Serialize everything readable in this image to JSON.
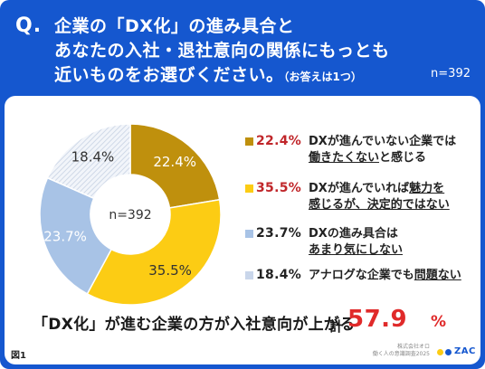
{
  "question": {
    "mark": "Q.",
    "line1": "企業の「DX化」の進み具合と",
    "line2": "あなたの入社・退社意向の関係にもっとも",
    "line3": "近いものをお選びください。",
    "note": "（お答えは1つ）",
    "n": "n=392"
  },
  "chart_data": {
    "type": "pie",
    "donut": true,
    "center_label": "n=392",
    "legend_position": "right",
    "slices": [
      {
        "label": "DXが進んでいない企業では働きたくないと感じる",
        "value": 22.4,
        "display": "22.4%",
        "color": "#bf900d"
      },
      {
        "label": "DXが進んでいれば魅力を感じるが、決定的ではない",
        "value": 35.5,
        "display": "35.5%",
        "color": "#fccc14"
      },
      {
        "label": "DXの進み具合はあまり気にしない",
        "value": 23.7,
        "display": "23.7%",
        "color": "#a8c3e6"
      },
      {
        "label": "アナログな企業でも問題ない",
        "value": 18.4,
        "display": "18.4%",
        "color": "#dde6f2",
        "hatched": true
      }
    ]
  },
  "legend": [
    {
      "pct": "22.4%",
      "pct_color": "#c0262a",
      "swatch": "#bf900d",
      "pre1": "DXが進んでいない企業では",
      "u1": "",
      "post1": "",
      "pre2": "",
      "u2": "働きたくない",
      "post2": "と感じる"
    },
    {
      "pct": "35.5%",
      "pct_color": "#c0262a",
      "swatch": "#fccc14",
      "pre1": "DXが進んでいれば",
      "u1": "魅力を",
      "post1": "",
      "pre2": "",
      "u2": "感じるが、決定的ではない",
      "post2": ""
    },
    {
      "pct": "23.7%",
      "pct_color": "#222222",
      "swatch": "#a8c3e6",
      "pre1": "DXの進み具合は",
      "u1": "",
      "post1": "",
      "pre2": "",
      "u2": "あまり気にしない",
      "post2": ""
    },
    {
      "pct": "18.4%",
      "pct_color": "#222222",
      "swatch": "#c9d6ea",
      "pre1": "アナログな企業でも",
      "u1": "問題ない",
      "post1": "",
      "pre2": "",
      "u2": "",
      "post2": ""
    }
  ],
  "summary": {
    "text": "「DX化」が進む企業の方が入社意向が上がる",
    "total_label": "計",
    "total_value": "57.9",
    "total_unit": "%"
  },
  "footer": {
    "fig": "図1",
    "credit1": "株式会社オロ",
    "credit2": "働く人の意識調査2025",
    "logo_text": "ZAC",
    "logo_dot_colors": [
      "#fccc14",
      "#1557cf"
    ]
  }
}
